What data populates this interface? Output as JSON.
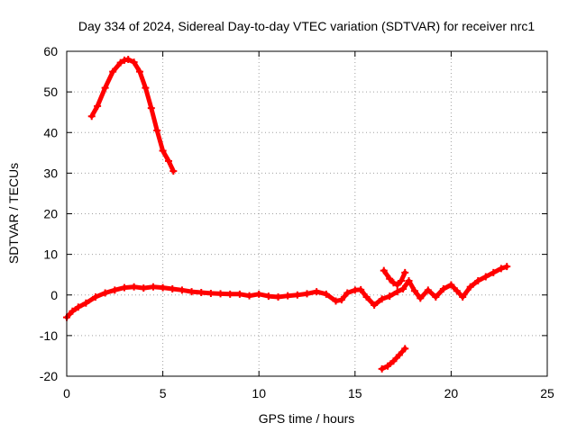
{
  "chart_data": {
    "type": "scatter",
    "title": "Day 334 of 2024, Sidereal Day-to-day VTEC variation (SDTVAR) for receiver nrc1",
    "xlabel": "GPS time / hours",
    "ylabel": "SDTVAR / TECUs",
    "xlim": [
      0,
      25
    ],
    "ylim": [
      -20,
      60
    ],
    "xticks": [
      0,
      5,
      10,
      15,
      20,
      25
    ],
    "yticks": [
      -20,
      -10,
      0,
      10,
      20,
      30,
      40,
      50,
      60
    ],
    "grid": true,
    "series_color": "#ff0000",
    "series": [
      {
        "name": "SDTVAR",
        "segments": [
          {
            "x": [
              1.3,
              1.6,
              2.0,
              2.4,
              2.8,
              3.0,
              3.2,
              3.5,
              3.8,
              4.1,
              4.4,
              4.7,
              5.0,
              5.3,
              5.55
            ],
            "y": [
              44,
              46.5,
              51,
              55,
              57.2,
              57.8,
              58,
              57.3,
              55,
              51,
              46,
              40.5,
              35.5,
              33,
              30.5
            ]
          },
          {
            "x": [
              0.0,
              0.3,
              0.6,
              1.0,
              1.5,
              2.0,
              2.5,
              3.0,
              3.5,
              4.0,
              4.5,
              5.0,
              5.5,
              6.0,
              6.5,
              7.0,
              7.5,
              8.0,
              8.5,
              9.0,
              9.5,
              10.0,
              10.5,
              11.0,
              11.5,
              12.0,
              12.5,
              13.0,
              13.5,
              14.0,
              14.3,
              14.6,
              15.0,
              15.3,
              15.6,
              16.0,
              16.4,
              16.8,
              17.2,
              17.5,
              17.8,
              18.1,
              18.4,
              18.8,
              19.2,
              19.6,
              20.0,
              20.3,
              20.6,
              21.0,
              21.4,
              21.8,
              22.2,
              22.6,
              22.9
            ],
            "y": [
              -5.5,
              -4,
              -3,
              -2,
              -0.5,
              0.5,
              1.2,
              1.8,
              2.0,
              1.7,
              2.0,
              1.8,
              1.5,
              1.2,
              0.8,
              0.6,
              0.4,
              0.3,
              0.2,
              0.2,
              -0.2,
              0.2,
              -0.3,
              -0.5,
              -0.2,
              0.0,
              0.3,
              0.8,
              0.2,
              -1.5,
              -1.2,
              0.5,
              1.2,
              1.3,
              -0.5,
              -2.5,
              -1.0,
              -0.3,
              0.8,
              1.5,
              3.5,
              1.0,
              -0.8,
              1.2,
              -0.5,
              1.5,
              2.5,
              1.0,
              -0.5,
              2.0,
              3.5,
              4.5,
              5.5,
              6.5,
              7.0
            ]
          },
          {
            "x": [
              16.5,
              16.8,
              17.0,
              17.2,
              17.4,
              17.6
            ],
            "y": [
              6.0,
              4.0,
              3.0,
              2.5,
              3.5,
              5.5
            ]
          },
          {
            "x": [
              16.4,
              16.7,
              17.0,
              17.3,
              17.6
            ],
            "y": [
              -18.2,
              -17.5,
              -16.3,
              -14.8,
              -13.2
            ]
          }
        ]
      }
    ]
  }
}
